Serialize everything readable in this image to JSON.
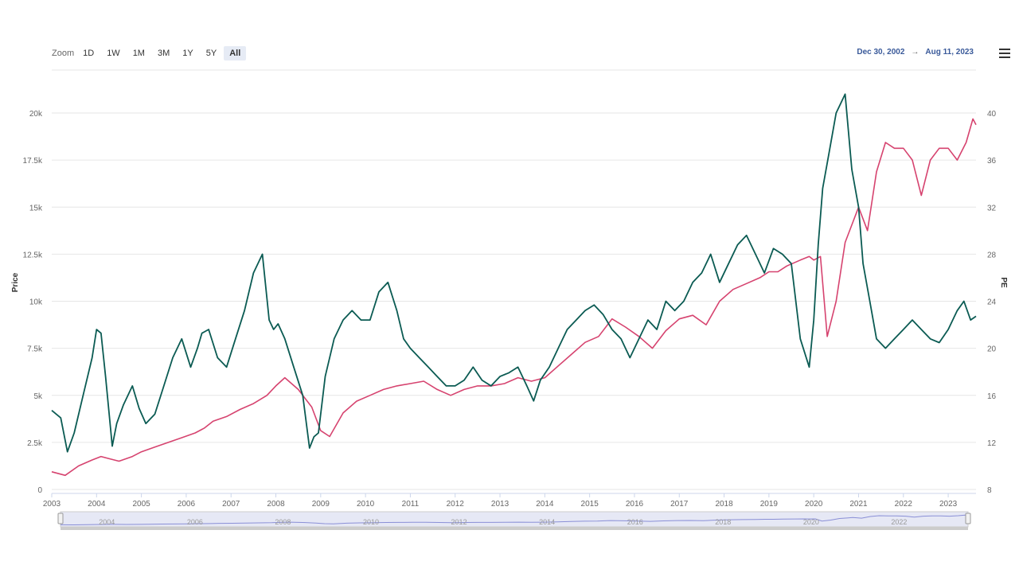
{
  "toolbar": {
    "zoom_label": "Zoom",
    "buttons": [
      "1D",
      "1W",
      "1M",
      "3M",
      "1Y",
      "5Y",
      "All"
    ],
    "active": "All"
  },
  "range": {
    "from": "Dec 30, 2002",
    "to": "Aug 11, 2023"
  },
  "icons": {
    "menu": "hamburger-menu-icon"
  },
  "colors": {
    "price": "#0b5b53",
    "pe": "#d6436f",
    "navigator": "#8a8fd6",
    "grid": "#e6e6e6"
  },
  "chart_data": {
    "type": "line",
    "title": "",
    "xlabel": "",
    "ylabel_left": "Price",
    "ylabel_right": "PE",
    "xlim": [
      2003,
      2023.62
    ],
    "ylim_left": [
      0,
      20000
    ],
    "ylim_right": [
      8,
      40
    ],
    "x_ticks": [
      "2003",
      "2004",
      "2005",
      "2006",
      "2007",
      "2008",
      "2009",
      "2010",
      "2011",
      "2012",
      "2013",
      "2014",
      "2015",
      "2016",
      "2017",
      "2018",
      "2019",
      "2020",
      "2021",
      "2022",
      "2023"
    ],
    "y_ticks_left": [
      "0",
      "2.5k",
      "5k",
      "7.5k",
      "10k",
      "12.5k",
      "15k",
      "17.5k",
      "20k"
    ],
    "y_ticks_right": [
      "8",
      "12",
      "16",
      "20",
      "24",
      "28",
      "32",
      "36",
      "40"
    ],
    "navigator_ticks": [
      "2004",
      "2006",
      "2008",
      "2010",
      "2012",
      "2014",
      "2016",
      "2018",
      "2020",
      "2022"
    ],
    "series": [
      {
        "name": "Price",
        "axis": "left",
        "x": [
          2003.0,
          2003.2,
          2003.35,
          2003.5,
          2003.7,
          2003.9,
          2004.0,
          2004.1,
          2004.2,
          2004.35,
          2004.45,
          2004.6,
          2004.8,
          2004.95,
          2005.1,
          2005.3,
          2005.5,
          2005.7,
          2005.9,
          2006.1,
          2006.25,
          2006.35,
          2006.5,
          2006.7,
          2006.9,
          2007.1,
          2007.3,
          2007.5,
          2007.7,
          2007.85,
          2007.95,
          2008.05,
          2008.2,
          2008.4,
          2008.6,
          2008.75,
          2008.85,
          2008.95,
          2009.1,
          2009.3,
          2009.5,
          2009.7,
          2009.9,
          2010.1,
          2010.3,
          2010.5,
          2010.7,
          2010.85,
          2011.0,
          2011.2,
          2011.4,
          2011.6,
          2011.8,
          2012.0,
          2012.2,
          2012.4,
          2012.6,
          2012.8,
          2013.0,
          2013.2,
          2013.4,
          2013.6,
          2013.75,
          2013.9,
          2014.1,
          2014.3,
          2014.5,
          2014.7,
          2014.9,
          2015.1,
          2015.3,
          2015.5,
          2015.7,
          2015.9,
          2016.1,
          2016.3,
          2016.5,
          2016.7,
          2016.9,
          2017.1,
          2017.3,
          2017.5,
          2017.7,
          2017.9,
          2018.1,
          2018.3,
          2018.5,
          2018.7,
          2018.9,
          2019.1,
          2019.3,
          2019.5,
          2019.7,
          2019.9,
          2020.0,
          2020.1,
          2020.2,
          2020.35,
          2020.5,
          2020.7,
          2020.85,
          2021.0,
          2021.1,
          2021.25,
          2021.4,
          2021.6,
          2021.8,
          2022.0,
          2022.2,
          2022.4,
          2022.6,
          2022.8,
          2023.0,
          2023.2,
          2023.35,
          2023.5,
          2023.62
        ],
        "y": [
          4200,
          3800,
          2000,
          3000,
          5000,
          7000,
          8500,
          8300,
          6000,
          2300,
          3500,
          4500,
          5500,
          4300,
          3500,
          4000,
          5500,
          7000,
          8000,
          6500,
          7500,
          8300,
          8500,
          7000,
          6500,
          8000,
          9500,
          11500,
          12500,
          9000,
          8500,
          8800,
          8000,
          6500,
          5000,
          2200,
          2800,
          3000,
          6000,
          8000,
          9000,
          9500,
          9000,
          9000,
          10500,
          11000,
          9500,
          8000,
          7500,
          7000,
          6500,
          6000,
          5500,
          5500,
          5800,
          6500,
          5800,
          5500,
          6000,
          6200,
          6500,
          5500,
          4700,
          5800,
          6500,
          7500,
          8500,
          9000,
          9500,
          9800,
          9300,
          8500,
          8000,
          7000,
          8000,
          9000,
          8500,
          10000,
          9500,
          10000,
          11000,
          11500,
          12500,
          11000,
          12000,
          13000,
          13500,
          12500,
          11500,
          12800,
          12500,
          12000,
          8000,
          6500,
          9000,
          13000,
          16000,
          18000,
          20000,
          21000,
          17000,
          15000,
          12000,
          10000,
          8000,
          7500,
          8000,
          8500,
          9000,
          8500,
          8000,
          7800,
          8500,
          9500,
          10000,
          9000,
          9200
        ]
      },
      {
        "name": "PE",
        "axis": "right",
        "x": [
          2003.0,
          2003.3,
          2003.6,
          2003.9,
          2004.1,
          2004.3,
          2004.5,
          2004.8,
          2005.0,
          2005.3,
          2005.6,
          2005.9,
          2006.2,
          2006.4,
          2006.6,
          2006.9,
          2007.2,
          2007.5,
          2007.8,
          2008.0,
          2008.2,
          2008.5,
          2008.8,
          2009.0,
          2009.2,
          2009.5,
          2009.8,
          2010.1,
          2010.4,
          2010.7,
          2011.0,
          2011.3,
          2011.6,
          2011.9,
          2012.2,
          2012.5,
          2012.8,
          2013.1,
          2013.4,
          2013.7,
          2014.0,
          2014.3,
          2014.6,
          2014.9,
          2015.2,
          2015.5,
          2015.8,
          2016.1,
          2016.4,
          2016.7,
          2017.0,
          2017.3,
          2017.6,
          2017.9,
          2018.2,
          2018.5,
          2018.8,
          2019.0,
          2019.2,
          2019.4,
          2019.7,
          2019.9,
          2020.0,
          2020.15,
          2020.3,
          2020.5,
          2020.7,
          2020.9,
          2021.0,
          2021.2,
          2021.4,
          2021.6,
          2021.8,
          2022.0,
          2022.2,
          2022.4,
          2022.6,
          2022.8,
          2023.0,
          2023.2,
          2023.4,
          2023.55,
          2023.62
        ],
        "y": [
          9.5,
          9.2,
          10,
          10.5,
          10.8,
          10.6,
          10.4,
          10.8,
          11.2,
          11.6,
          12,
          12.4,
          12.8,
          13.2,
          13.8,
          14.2,
          14.8,
          15.3,
          16,
          16.8,
          17.5,
          16.5,
          15,
          13,
          12.5,
          14.5,
          15.5,
          16,
          16.5,
          16.8,
          17,
          17.2,
          16.5,
          16,
          16.5,
          16.8,
          16.8,
          17,
          17.5,
          17.2,
          17.5,
          18.5,
          19.5,
          20.5,
          21,
          22.5,
          21.8,
          21,
          20,
          21.5,
          22.5,
          22.8,
          22,
          24,
          25,
          25.5,
          26,
          26.5,
          26.5,
          27,
          27.5,
          27.8,
          27.5,
          27.8,
          21,
          24,
          29,
          31,
          32,
          30,
          35,
          37.5,
          37,
          37,
          36,
          33,
          36,
          37,
          37,
          36,
          37.5,
          39.5,
          39
        ]
      }
    ]
  }
}
